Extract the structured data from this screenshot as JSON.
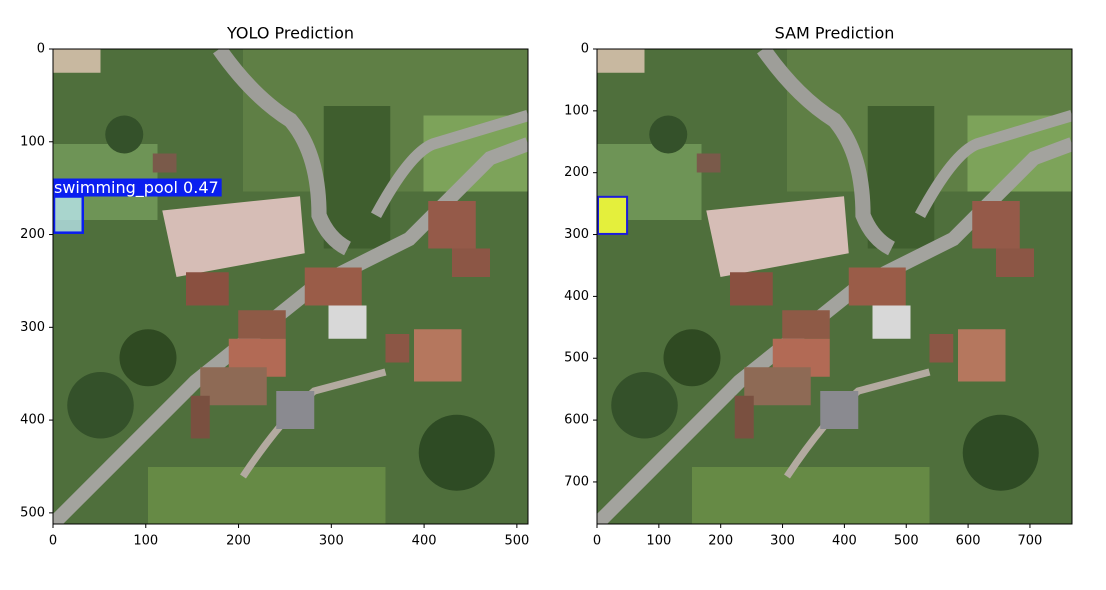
{
  "chart_data": [
    {
      "type": "image",
      "title": "YOLO Prediction",
      "xlim": [
        0,
        512
      ],
      "ylim": [
        512,
        0
      ],
      "xticks": [
        0,
        100,
        200,
        300,
        400,
        500
      ],
      "yticks": [
        0,
        100,
        200,
        300,
        400,
        500
      ],
      "detection": {
        "style": "box",
        "label": "swimming_pool 0.47",
        "color": "#0a1ef0",
        "x": [
          0,
          31
        ],
        "y": [
          159,
          198
        ]
      }
    },
    {
      "type": "image",
      "title": "SAM Prediction",
      "xlim": [
        0,
        768
      ],
      "ylim": [
        768,
        0
      ],
      "xticks": [
        0,
        100,
        200,
        300,
        400,
        500,
        600,
        700
      ],
      "yticks": [
        0,
        100,
        200,
        300,
        400,
        500,
        600,
        700
      ],
      "detection": {
        "style": "mask",
        "color": "#e4ef3c",
        "x": [
          0,
          47
        ],
        "y": [
          239,
          299
        ]
      }
    }
  ]
}
